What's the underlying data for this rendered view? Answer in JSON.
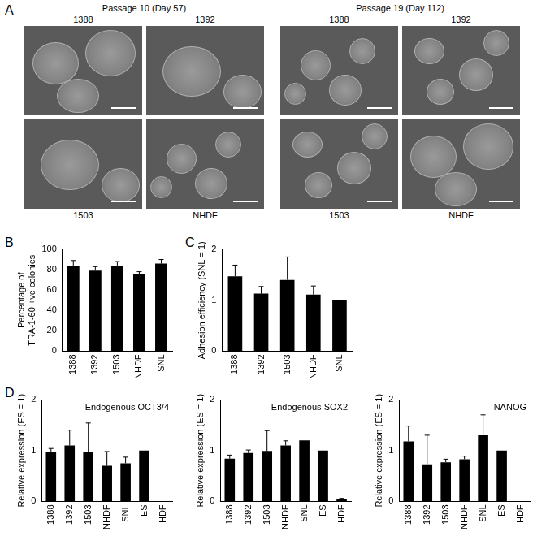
{
  "micrographs": {
    "panel": "A",
    "groups": [
      {
        "title": "Passage 10 (Day 57)",
        "top_labels": [
          "1388",
          "1392"
        ],
        "bottom_labels": [
          "1503",
          "NHDF"
        ]
      },
      {
        "title": "Passage 19 (Day 112)",
        "top_labels": [
          "1388",
          "1392"
        ],
        "bottom_labels": [
          "1503",
          "NHDF"
        ]
      }
    ]
  },
  "chart_data": [
    {
      "panel": "B",
      "type": "bar",
      "categories": [
        "1388",
        "1392",
        "1503",
        "NHDF",
        "SNL"
      ],
      "values": [
        84,
        79,
        84,
        76,
        86
      ],
      "errors": [
        5,
        4,
        4,
        2,
        4
      ],
      "color": "#000000",
      "y_label": [
        "Percentage of",
        "TRA-1-60 +ve colonies"
      ],
      "ylim": [
        0,
        100
      ],
      "yticks": [
        0,
        20,
        40,
        60,
        80,
        100
      ],
      "grid": false
    },
    {
      "panel": "C",
      "type": "bar",
      "categories": [
        "1388",
        "1392",
        "1503",
        "NHDF",
        "SNL"
      ],
      "values": [
        1.47,
        1.13,
        1.4,
        1.11,
        1.0
      ],
      "errors": [
        0.22,
        0.14,
        0.45,
        0.17,
        0
      ],
      "color": "#000000",
      "y_label": "Adhesion efficiency (SNL = 1)",
      "ylim": [
        0,
        2
      ],
      "yticks": [
        0,
        1,
        2
      ],
      "grid": false
    },
    {
      "panel": "D",
      "type": "bar",
      "title": "Endogenous OCT3/4",
      "categories": [
        "1388",
        "1392",
        "1503",
        "NHDF",
        "SNL",
        "ES",
        "HDF"
      ],
      "values": [
        0.97,
        1.1,
        0.97,
        0.7,
        0.75,
        1.0,
        0.0
      ],
      "errors": [
        0.07,
        0.3,
        0.57,
        0.28,
        0.12,
        0,
        0
      ],
      "color": "#000000",
      "y_label": "Relative expression (ES = 1)",
      "ylim": [
        0,
        2
      ],
      "yticks": [
        0,
        1,
        2
      ],
      "grid": false
    },
    {
      "type": "bar",
      "title": "Endogenous SOX2",
      "categories": [
        "1388",
        "1392",
        "1503",
        "NHDF",
        "SNL",
        "ES",
        "HDF"
      ],
      "values": [
        0.84,
        0.95,
        0.99,
        1.1,
        1.2,
        1.0,
        0.05
      ],
      "errors": [
        0.07,
        0.06,
        0.4,
        0.09,
        0,
        0,
        0.01
      ],
      "color": "#000000",
      "y_label": "Relative expression (ES = 1)",
      "ylim": [
        0,
        2
      ],
      "yticks": [
        0,
        1,
        2
      ],
      "grid": false
    },
    {
      "type": "bar",
      "title": "NANOG",
      "categories": [
        "1388",
        "1392",
        "1503",
        "NHDF",
        "SNL",
        "ES",
        "HDF"
      ],
      "values": [
        1.18,
        0.73,
        0.77,
        0.83,
        1.3,
        1.0,
        0.0
      ],
      "errors": [
        0.3,
        0.57,
        0.06,
        0.06,
        0.4,
        0,
        0
      ],
      "color": "#000000",
      "y_label": "Relative expression (ES = 1)",
      "ylim": [
        0,
        2
      ],
      "yticks": [
        0,
        1,
        2
      ],
      "grid": false
    }
  ]
}
